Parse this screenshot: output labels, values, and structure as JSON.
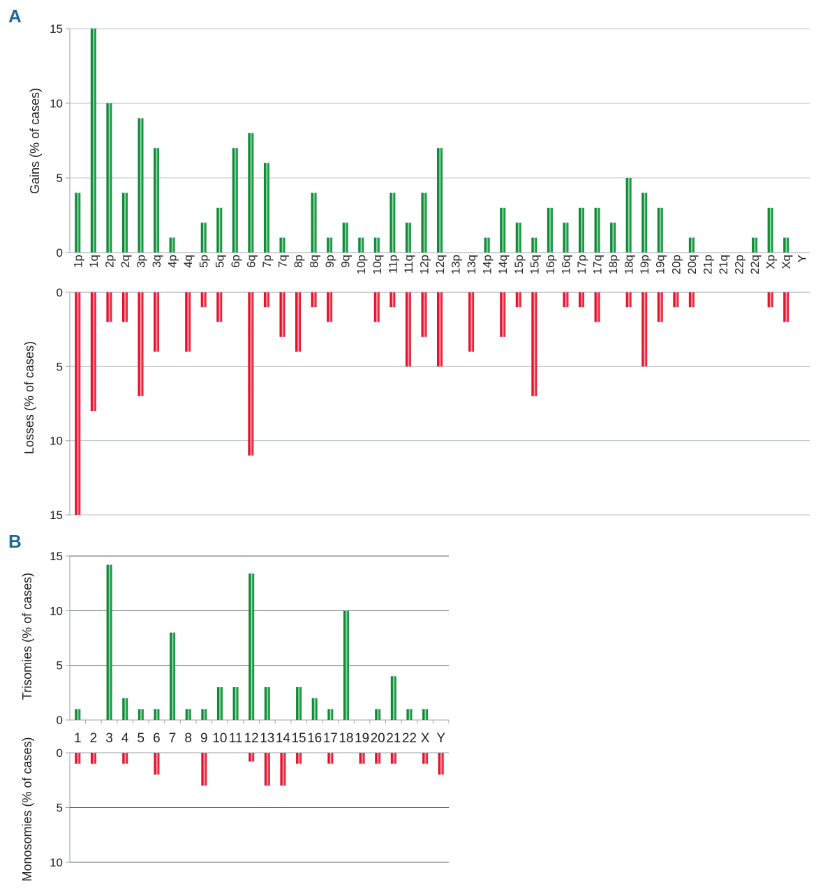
{
  "chart_data": [
    {
      "panel": "A",
      "type": "bar",
      "categories": [
        "1p",
        "1q",
        "2p",
        "2q",
        "3p",
        "3q",
        "4p",
        "4q",
        "5p",
        "5q",
        "6p",
        "6q",
        "7p",
        "7q",
        "8p",
        "8q",
        "9p",
        "9q",
        "10p",
        "10q",
        "11p",
        "11q",
        "12p",
        "12q",
        "13p",
        "13q",
        "14p",
        "14q",
        "15p",
        "15q",
        "16p",
        "16q",
        "17p",
        "17q",
        "18p",
        "18q",
        "19p",
        "19q",
        "20p",
        "20q",
        "21p",
        "21q",
        "22p",
        "22q",
        "Xp",
        "Xq",
        "Y"
      ],
      "top": {
        "ylabel": "Gains (% of cases)",
        "ylim": [
          0,
          15
        ],
        "yticks": [
          0,
          5,
          10,
          15
        ],
        "color": "#1e9a48",
        "values": [
          4,
          15,
          10,
          4,
          9,
          7,
          1,
          0,
          2,
          3,
          7,
          8,
          6,
          1,
          0,
          4,
          1,
          2,
          1,
          1,
          4,
          2,
          4,
          7,
          0,
          0,
          1,
          3,
          2,
          1,
          3,
          2,
          3,
          3,
          2,
          5,
          4,
          3,
          0,
          1,
          0,
          0,
          0,
          1,
          3,
          1,
          0
        ]
      },
      "bottom": {
        "ylabel": "Losses (% of cases)",
        "ylim": [
          0,
          15
        ],
        "yticks": [
          0,
          5,
          10,
          15
        ],
        "color": "#e8283c",
        "values": [
          15,
          8,
          2,
          2,
          7,
          4,
          0,
          4,
          1,
          2,
          0,
          11,
          1,
          3,
          4,
          1,
          2,
          0,
          0,
          2,
          1,
          5,
          3,
          5,
          0,
          4,
          0,
          3,
          1,
          7,
          0,
          1,
          1,
          2,
          0,
          1,
          5,
          2,
          1,
          1,
          0,
          0,
          0,
          0,
          1,
          2,
          0
        ]
      },
      "grid": true
    },
    {
      "panel": "B",
      "type": "bar",
      "categories": [
        "1",
        "2",
        "3",
        "4",
        "5",
        "6",
        "7",
        "8",
        "9",
        "10",
        "11",
        "12",
        "13",
        "14",
        "15",
        "16",
        "17",
        "18",
        "19",
        "20",
        "21",
        "22",
        "X",
        "Y"
      ],
      "top": {
        "ylabel": "Trisomies (% of cases)",
        "ylim": [
          0,
          15
        ],
        "yticks": [
          0,
          5,
          10,
          15
        ],
        "color": "#1e9a48",
        "values": [
          1,
          0,
          14.2,
          2,
          1,
          1,
          8,
          1,
          1,
          3,
          3,
          13.4,
          3,
          0,
          3,
          2,
          1,
          10,
          0,
          1,
          4,
          1,
          1,
          0
        ]
      },
      "bottom": {
        "ylabel": "Monosomies (% of cases)",
        "ylim": [
          0,
          10
        ],
        "yticks": [
          0,
          5,
          10
        ],
        "color": "#e8283c",
        "values": [
          1,
          1,
          0,
          1,
          0,
          2,
          0,
          0,
          3,
          0,
          0,
          0.8,
          3,
          3,
          1,
          0,
          1,
          0,
          1,
          1,
          1,
          0,
          1,
          2
        ]
      },
      "grid": true
    }
  ]
}
